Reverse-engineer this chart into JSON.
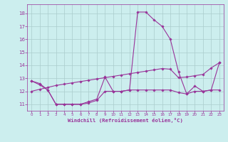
{
  "background_color": "#cceeee",
  "grid_color": "#aacccc",
  "line_color": "#993399",
  "marker_color": "#993399",
  "xlabel": "Windchill (Refroidissement éolien,°C)",
  "xlabel_color": "#993399",
  "tick_color": "#993399",
  "xlim": [
    -0.5,
    23.5
  ],
  "ylim": [
    10.5,
    18.7
  ],
  "yticks": [
    11,
    12,
    13,
    14,
    15,
    16,
    17,
    18
  ],
  "xticks": [
    0,
    1,
    2,
    3,
    4,
    5,
    6,
    7,
    8,
    9,
    10,
    11,
    12,
    13,
    14,
    15,
    16,
    17,
    18,
    19,
    20,
    21,
    22,
    23
  ],
  "series": [
    [
      12.8,
      12.5,
      12.1,
      11.0,
      11.0,
      11.0,
      11.0,
      11.2,
      11.4,
      13.1,
      12.0,
      12.0,
      12.1,
      18.1,
      18.1,
      17.5,
      17.0,
      16.0,
      13.5,
      11.8,
      12.4,
      12.0,
      12.1,
      14.2
    ],
    [
      12.8,
      12.6,
      12.1,
      11.0,
      11.0,
      11.0,
      11.0,
      11.1,
      11.3,
      12.0,
      12.0,
      12.0,
      12.1,
      12.1,
      12.1,
      12.1,
      12.1,
      12.1,
      11.9,
      11.8,
      12.0,
      12.0,
      12.1,
      12.1
    ],
    [
      12.0,
      12.15,
      12.3,
      12.45,
      12.55,
      12.65,
      12.75,
      12.85,
      12.95,
      13.05,
      13.15,
      13.25,
      13.35,
      13.45,
      13.55,
      13.65,
      13.75,
      13.7,
      13.05,
      13.1,
      13.2,
      13.3,
      13.8,
      14.2
    ]
  ]
}
